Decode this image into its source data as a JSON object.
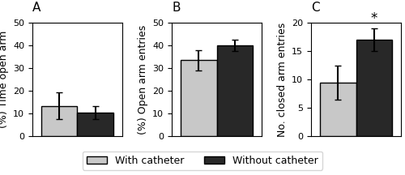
{
  "chart_data": [
    {
      "type": "bar",
      "title": "A",
      "ylabel": "(%) Time open arm",
      "categories": [
        null
      ],
      "series": [
        {
          "name": "With catheter",
          "color": "#c8c8c8",
          "values": [
            13.5
          ],
          "errors": [
            6.0
          ]
        },
        {
          "name": "Without catheter",
          "color": "#282828",
          "values": [
            10.5
          ],
          "errors": [
            2.8
          ]
        }
      ],
      "ylim": [
        0,
        50
      ],
      "yticks": [
        0,
        10,
        20,
        30,
        40,
        50
      ],
      "legend": "lower center"
    },
    {
      "type": "bar",
      "title": "B",
      "ylabel": "(%) Open arm entries",
      "categories": [
        null
      ],
      "series": [
        {
          "name": "With catheter",
          "color": "#c8c8c8",
          "values": [
            33.5
          ],
          "errors": [
            4.5
          ]
        },
        {
          "name": "Without catheter",
          "color": "#282828",
          "values": [
            40.0
          ],
          "errors": [
            2.5
          ]
        }
      ],
      "ylim": [
        0,
        50
      ],
      "yticks": [
        0,
        10,
        20,
        30,
        40,
        50
      ]
    },
    {
      "type": "bar",
      "title": "C",
      "ylabel": "No. closed arm entries",
      "categories": [
        null
      ],
      "series": [
        {
          "name": "With catheter",
          "color": "#c8c8c8",
          "values": [
            9.5
          ],
          "errors": [
            3.0
          ]
        },
        {
          "name": "Without catheter",
          "color": "#282828",
          "values": [
            17.0
          ],
          "errors": [
            2.0
          ]
        }
      ],
      "annotations": [
        {
          "text": "*",
          "series": "Without catheter"
        }
      ],
      "ylim": [
        0,
        20
      ],
      "yticks": [
        0,
        5,
        10,
        15,
        20
      ]
    }
  ]
}
